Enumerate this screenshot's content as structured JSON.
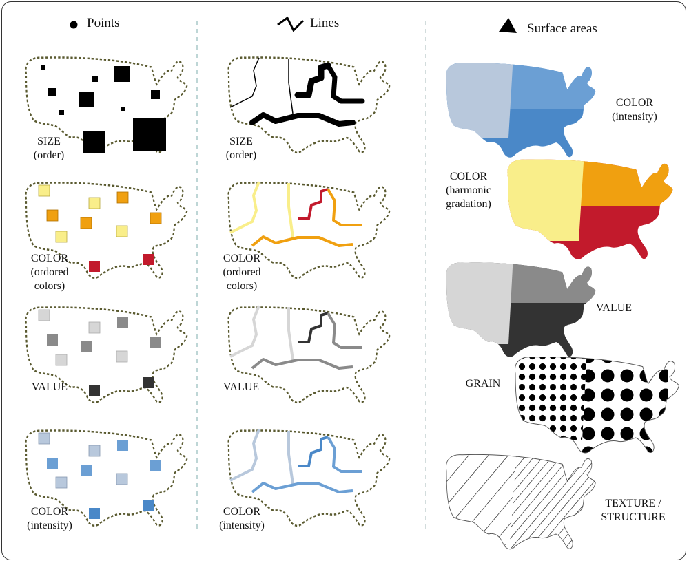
{
  "headers": {
    "points": "Points",
    "lines": "Lines",
    "areas": "Surface areas"
  },
  "points": [
    {
      "label1": "SIZE",
      "label2": "(order)"
    },
    {
      "label1": "COLOR",
      "label2": "(ordored",
      "label3": "colors)"
    },
    {
      "label1": "VALUE"
    },
    {
      "label1": "COLOR",
      "label2": "(intensity)"
    }
  ],
  "lines": [
    {
      "label1": "SIZE",
      "label2": "(order)"
    },
    {
      "label1": "COLOR",
      "label2": "(ordored",
      "label3": "colors)"
    },
    {
      "label1": "VALUE"
    },
    {
      "label1": "COLOR",
      "label2": "(intensity)"
    }
  ],
  "areas": [
    {
      "label1": "COLOR",
      "label2": "(intensity)"
    },
    {
      "label1": "COLOR",
      "label2": "(harmonic",
      "label3": "gradation)"
    },
    {
      "label1": "VALUE"
    },
    {
      "label1": "GRAIN"
    },
    {
      "label1": "TEXTURE /",
      "label2": "STRUCTURE"
    }
  ],
  "colors": {
    "yellow": "#f9ee8a",
    "orange": "#f0a010",
    "red": "#c21a2c",
    "light_blue": "#b8c8dc",
    "mid_blue": "#6b9fd4",
    "blue": "#4a88c8",
    "light_gray": "#d6d6d6",
    "mid_gray": "#8a8a8a",
    "dark_gray": "#333333",
    "outline": "#5a5a30"
  }
}
